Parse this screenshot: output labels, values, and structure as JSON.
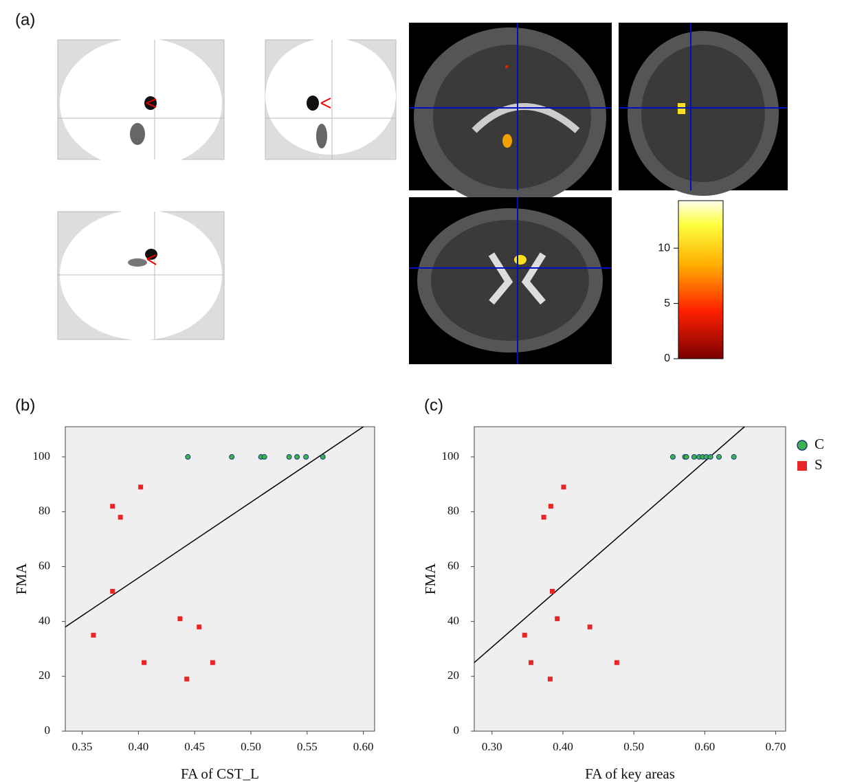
{
  "panel_a": {
    "label": "(a)",
    "colorbar": {
      "ylim": [
        0,
        14.3
      ],
      "yticks": [
        0,
        5,
        10
      ]
    }
  },
  "chart_data": [
    {
      "type": "scatter",
      "panel_label": "(b)",
      "x_label": "FA of CST_L",
      "y_label": "FMA",
      "xlim": [
        0.335,
        0.61
      ],
      "xticks": [
        {
          "value": 0.35,
          "label": "0.35"
        },
        {
          "value": 0.4,
          "label": "0.40"
        },
        {
          "value": 0.45,
          "label": "0.45"
        },
        {
          "value": 0.5,
          "label": "0.50"
        },
        {
          "value": 0.55,
          "label": "0.55"
        },
        {
          "value": 0.6,
          "label": "0.60"
        }
      ],
      "ylim": [
        0,
        111
      ],
      "yticks": [
        0,
        20,
        40,
        60,
        80,
        100
      ],
      "series": [
        {
          "color": "#3cb44b",
          "marker": "circle",
          "x": [
            0.444,
            0.483,
            0.509,
            0.512,
            0.534,
            0.541,
            0.549,
            0.564
          ],
          "values": [
            100,
            100,
            100,
            100,
            100,
            100,
            100,
            100
          ]
        },
        {
          "color": "#e8262a",
          "marker": "square",
          "x": [
            0.36,
            0.377,
            0.384,
            0.402,
            0.377,
            0.405,
            0.437,
            0.454,
            0.443,
            0.466
          ],
          "values": [
            35,
            82,
            78,
            89,
            51,
            25,
            41,
            38,
            19,
            25
          ]
        }
      ],
      "fit": {
        "x": [
          0.335,
          0.6
        ],
        "y": [
          38,
          111
        ]
      }
    },
    {
      "type": "scatter",
      "panel_label": "(c)",
      "x_label": "FA of key areas",
      "y_label": "FMA",
      "xlim": [
        0.275,
        0.714
      ],
      "xticks": [
        {
          "value": 0.3,
          "label": "0.30"
        },
        {
          "value": 0.4,
          "label": "0.40"
        },
        {
          "value": 0.5,
          "label": "0.50"
        },
        {
          "value": 0.6,
          "label": "0.60"
        },
        {
          "value": 0.7,
          "label": "0.70"
        }
      ],
      "ylim": [
        0,
        111
      ],
      "yticks": [
        0,
        20,
        40,
        60,
        80,
        100
      ],
      "series": [
        {
          "name": "C",
          "color": "#3cb44b",
          "marker": "circle",
          "x": [
            0.555,
            0.572,
            0.574,
            0.585,
            0.592,
            0.597,
            0.602,
            0.608,
            0.62,
            0.641
          ],
          "values": [
            100,
            100,
            100,
            100,
            100,
            100,
            100,
            100,
            100,
            100
          ]
        },
        {
          "name": "S",
          "color": "#e8262a",
          "marker": "square",
          "x": [
            0.346,
            0.355,
            0.373,
            0.382,
            0.383,
            0.385,
            0.392,
            0.401,
            0.438,
            0.476
          ],
          "values": [
            35,
            25,
            78,
            19,
            82,
            51,
            41,
            89,
            38,
            25
          ]
        }
      ],
      "fit": {
        "x": [
          0.275,
          0.656
        ],
        "y": [
          25,
          111
        ]
      },
      "legend": "outside-right"
    }
  ]
}
